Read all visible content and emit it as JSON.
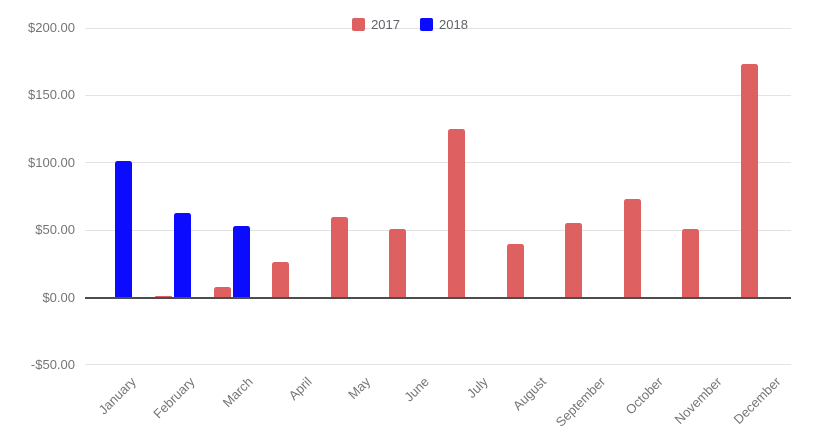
{
  "chart_data": {
    "type": "bar",
    "title": "",
    "xlabel": "",
    "ylabel": "",
    "categories": [
      "January",
      "February",
      "March",
      "April",
      "May",
      "June",
      "July",
      "August",
      "September",
      "October",
      "November",
      "December"
    ],
    "series": [
      {
        "name": "2017",
        "color": "#de6060",
        "values": [
          0,
          1,
          8,
          26,
          60,
          51,
          125,
          40,
          55,
          73,
          51,
          173
        ]
      },
      {
        "name": "2018",
        "color": "#0b0bff",
        "values": [
          101,
          63,
          53,
          null,
          null,
          null,
          null,
          null,
          null,
          null,
          null,
          null
        ]
      }
    ],
    "ylim": [
      -50,
      200
    ],
    "y_ticks": [
      {
        "value": 200,
        "label": "$200.00"
      },
      {
        "value": 150,
        "label": "$150.00"
      },
      {
        "value": 100,
        "label": "$100.00"
      },
      {
        "value": 50,
        "label": "$50.00"
      },
      {
        "value": 0,
        "label": "$0.00"
      },
      {
        "value": -50,
        "label": "-$50.00"
      }
    ],
    "grid": true,
    "legend_position": "top-center",
    "x_labels_rotated": true
  },
  "legend": {
    "items": [
      {
        "label": "2017",
        "color": "#de6060"
      },
      {
        "label": "2018",
        "color": "#0b0bff"
      }
    ]
  },
  "style": {
    "background": "#ffffff",
    "gridline_color": "#e3e3e3",
    "zero_axis_color": "#4d4d4d",
    "tick_label_color": "#757575",
    "legend_text_color": "#5f6368"
  }
}
